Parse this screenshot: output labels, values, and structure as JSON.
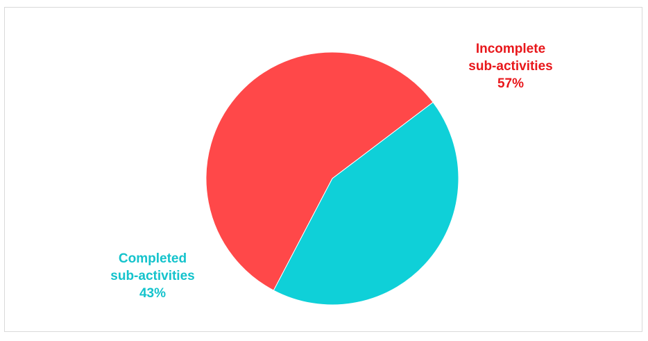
{
  "chart_data": {
    "type": "pie",
    "title": "",
    "slices": [
      {
        "label": "Incomplete sub-activities",
        "value": 57,
        "display": "57%",
        "color": "#ff4849"
      },
      {
        "label": "Completed sub-activities",
        "value": 43,
        "display": "43%",
        "color": "#0fd0d8"
      }
    ]
  },
  "labels": {
    "incomplete": {
      "line1": "Incomplete",
      "line2": "sub-activities",
      "pct": "57%",
      "color": "#e8171b"
    },
    "completed": {
      "line1": "Completed",
      "line2": "sub-activities",
      "pct": "43%",
      "color": "#14c3cc"
    }
  }
}
